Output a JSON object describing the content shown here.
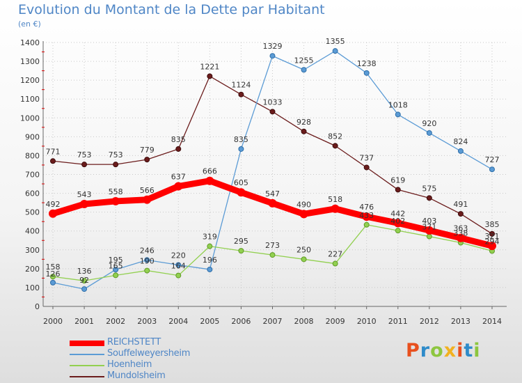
{
  "header": {
    "title": "Evolution du Montant de la Dette par Habitant",
    "unit": "(en €)"
  },
  "logo": {
    "text": "Proxiti",
    "colors": [
      "#e8501e",
      "#2e8bc9",
      "#8dc63f",
      "#f2b120",
      "#e8501e",
      "#2e8bc9",
      "#8dc63f"
    ]
  },
  "chart_data": {
    "type": "line",
    "title": "Evolution du Montant de la Dette par Habitant",
    "subtitle": "(en €)",
    "xlabel": "",
    "ylabel": "",
    "x": [
      "2000",
      "2001",
      "2002",
      "2003",
      "2004",
      "2005",
      "2006",
      "2007",
      "2008",
      "2009",
      "2010",
      "2011",
      "2012",
      "2013",
      "2014"
    ],
    "ylim": [
      0,
      1400
    ],
    "yticks": [
      0,
      100,
      200,
      300,
      400,
      500,
      600,
      700,
      800,
      900,
      1000,
      1100,
      1200,
      1300,
      1400
    ],
    "grid": true,
    "legend_position": "bottom-left",
    "series": [
      {
        "name": "REICHSTETT",
        "color": "#ff0000",
        "values": [
          492,
          543,
          558,
          566,
          637,
          666,
          605,
          547,
          490,
          518,
          476,
          442,
          403,
          363,
          321
        ]
      },
      {
        "name": "Souffelweyersheim",
        "color": "#5b9bd5",
        "values": [
          126,
          92,
          195,
          246,
          220,
          196,
          835,
          1329,
          1255,
          1355,
          1238,
          1018,
          920,
          824,
          727
        ]
      },
      {
        "name": "Hoenheim",
        "color": "#92d050",
        "values": [
          158,
          136,
          165,
          190,
          164,
          319,
          295,
          273,
          250,
          227,
          433,
          402,
          371,
          338,
          294
        ]
      },
      {
        "name": "Mundolsheim",
        "color": "#6b1c1c",
        "values": [
          771,
          753,
          753,
          779,
          835,
          1221,
          1124,
          1033,
          928,
          852,
          737,
          619,
          575,
          491,
          385
        ]
      }
    ]
  }
}
